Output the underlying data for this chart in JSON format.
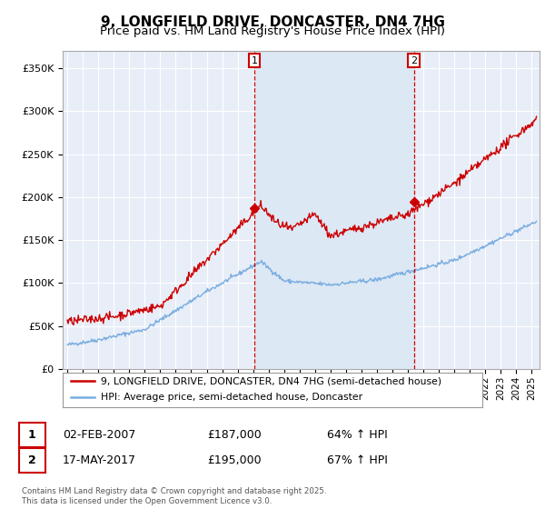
{
  "title": "9, LONGFIELD DRIVE, DONCASTER, DN4 7HG",
  "subtitle": "Price paid vs. HM Land Registry's House Price Index (HPI)",
  "ylim": [
    0,
    370000
  ],
  "yticks": [
    0,
    50000,
    100000,
    150000,
    200000,
    250000,
    300000,
    350000
  ],
  "ytick_labels": [
    "£0",
    "£50K",
    "£100K",
    "£150K",
    "£200K",
    "£250K",
    "£300K",
    "£350K"
  ],
  "xlim_start": 1994.7,
  "xlim_end": 2025.5,
  "background_color": "#e8eef8",
  "grid_color": "#ffffff",
  "red_color": "#cc0000",
  "blue_color": "#7aade0",
  "shade_color": "#dde8f5",
  "marker1_x": 2007.08,
  "marker1_y": 187000,
  "marker2_x": 2017.38,
  "marker2_y": 195000,
  "legend_line1": "9, LONGFIELD DRIVE, DONCASTER, DN4 7HG (semi-detached house)",
  "legend_line2": "HPI: Average price, semi-detached house, Doncaster",
  "footer": "Contains HM Land Registry data © Crown copyright and database right 2025.\nThis data is licensed under the Open Government Licence v3.0.",
  "title_fontsize": 11,
  "subtitle_fontsize": 9.5
}
